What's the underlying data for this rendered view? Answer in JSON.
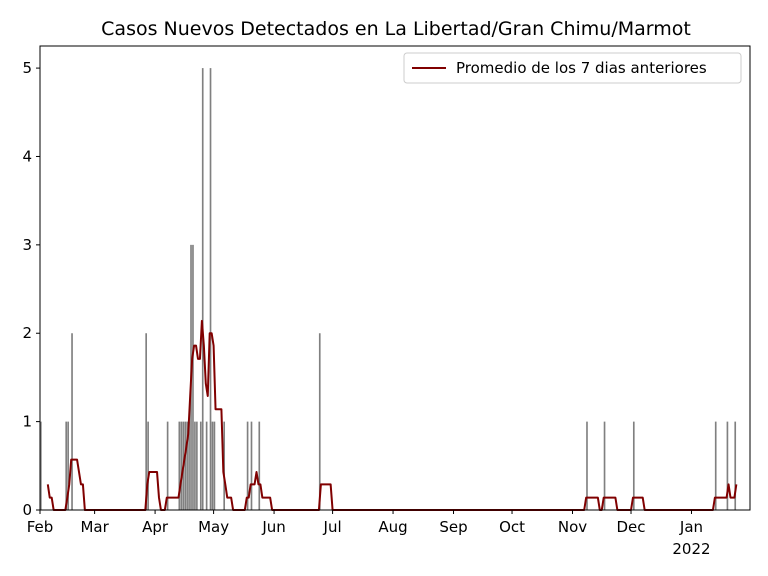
{
  "chart_data": {
    "type": "bar",
    "title": "Casos Nuevos Detectados en La Libertad/Gran Chimu/Marmot",
    "xlabel": "",
    "ylabel": "",
    "x_range": [
      "2021-02-01",
      "2022-01-31"
    ],
    "ylim": [
      0,
      5.25
    ],
    "y_ticks": [
      0,
      1,
      2,
      3,
      4,
      5
    ],
    "x_ticks": [
      {
        "date": "2021-02-01",
        "label": "Feb",
        "sublabel": ""
      },
      {
        "date": "2021-03-01",
        "label": "Mar",
        "sublabel": ""
      },
      {
        "date": "2021-04-01",
        "label": "Apr",
        "sublabel": ""
      },
      {
        "date": "2021-05-01",
        "label": "May",
        "sublabel": ""
      },
      {
        "date": "2021-06-01",
        "label": "Jun",
        "sublabel": ""
      },
      {
        "date": "2021-07-01",
        "label": "Jul",
        "sublabel": ""
      },
      {
        "date": "2021-08-01",
        "label": "Aug",
        "sublabel": ""
      },
      {
        "date": "2021-09-01",
        "label": "Sep",
        "sublabel": ""
      },
      {
        "date": "2021-10-01",
        "label": "Oct",
        "sublabel": ""
      },
      {
        "date": "2021-11-01",
        "label": "Nov",
        "sublabel": ""
      },
      {
        "date": "2021-12-01",
        "label": "Dec",
        "sublabel": ""
      },
      {
        "date": "2022-01-01",
        "label": "Jan",
        "sublabel": "2022"
      }
    ],
    "grid": false,
    "legend": {
      "position": "upper-right"
    },
    "bar_color": "#808080",
    "series": [
      {
        "kind": "bar",
        "x": [
          "2021-02-01",
          "2021-02-14",
          "2021-02-15",
          "2021-02-17",
          "2021-03-27",
          "2021-03-28",
          "2021-04-07",
          "2021-04-13",
          "2021-04-14",
          "2021-04-15",
          "2021-04-16",
          "2021-04-17",
          "2021-04-18",
          "2021-04-19",
          "2021-04-20",
          "2021-04-21",
          "2021-04-22",
          "2021-04-24",
          "2021-04-25",
          "2021-04-27",
          "2021-04-29",
          "2021-04-30",
          "2021-05-01",
          "2021-05-06",
          "2021-05-18",
          "2021-05-20",
          "2021-05-24",
          "2021-06-24",
          "2021-11-08",
          "2021-11-17",
          "2021-12-02",
          "2022-01-13",
          "2022-01-19",
          "2022-01-23"
        ],
        "values": [
          1,
          1,
          1,
          2,
          2,
          1,
          1,
          1,
          1,
          1,
          1,
          1,
          1,
          3,
          3,
          1,
          1,
          1,
          5,
          1,
          5,
          1,
          1,
          1,
          1,
          1,
          1,
          2,
          1,
          1,
          1,
          1,
          1,
          1
        ]
      },
      {
        "kind": "line",
        "name": "Promedio de los 7 dias anteriores",
        "color": "#800000",
        "x": [
          "2021-02-05",
          "2021-02-06",
          "2021-02-07",
          "2021-02-08",
          "2021-02-14",
          "2021-02-15",
          "2021-02-16",
          "2021-02-17",
          "2021-02-18",
          "2021-02-19",
          "2021-02-20",
          "2021-02-21",
          "2021-02-22",
          "2021-02-23",
          "2021-02-24",
          "2021-03-27",
          "2021-03-28",
          "2021-03-29",
          "2021-03-30",
          "2021-03-31",
          "2021-04-01",
          "2021-04-02",
          "2021-04-03",
          "2021-04-04",
          "2021-04-05",
          "2021-04-06",
          "2021-04-07",
          "2021-04-13",
          "2021-04-14",
          "2021-04-15",
          "2021-04-16",
          "2021-04-17",
          "2021-04-18",
          "2021-04-19",
          "2021-04-20",
          "2021-04-21",
          "2021-04-22",
          "2021-04-23",
          "2021-04-24",
          "2021-04-25",
          "2021-04-26",
          "2021-04-27",
          "2021-04-28",
          "2021-04-29",
          "2021-04-30",
          "2021-05-01",
          "2021-05-02",
          "2021-05-03",
          "2021-05-04",
          "2021-05-05",
          "2021-05-06",
          "2021-05-07",
          "2021-05-08",
          "2021-05-09",
          "2021-05-10",
          "2021-05-11",
          "2021-05-12",
          "2021-05-13",
          "2021-05-14",
          "2021-05-17",
          "2021-05-18",
          "2021-05-19",
          "2021-05-20",
          "2021-05-21",
          "2021-05-22",
          "2021-05-23",
          "2021-05-24",
          "2021-05-25",
          "2021-05-26",
          "2021-05-27",
          "2021-05-28",
          "2021-05-29",
          "2021-05-30",
          "2021-05-31",
          "2021-06-24",
          "2021-06-25",
          "2021-06-26",
          "2021-06-27",
          "2021-06-28",
          "2021-06-29",
          "2021-06-30",
          "2021-07-01",
          "2021-11-07",
          "2021-11-08",
          "2021-11-09",
          "2021-11-10",
          "2021-11-11",
          "2021-11-12",
          "2021-11-13",
          "2021-11-14",
          "2021-11-15",
          "2021-11-16",
          "2021-11-17",
          "2021-11-18",
          "2021-11-19",
          "2021-11-20",
          "2021-11-21",
          "2021-11-22",
          "2021-11-23",
          "2021-11-24",
          "2021-12-01",
          "2021-12-02",
          "2021-12-03",
          "2021-12-04",
          "2021-12-05",
          "2021-12-06",
          "2021-12-07",
          "2021-12-08",
          "2021-12-09",
          "2022-01-12",
          "2022-01-13",
          "2022-01-14",
          "2022-01-15",
          "2022-01-16",
          "2022-01-17",
          "2022-01-18",
          "2022-01-19",
          "2022-01-20",
          "2022-01-21",
          "2022-01-22",
          "2022-01-23",
          "2022-01-24"
        ],
        "values": [
          0.29,
          0.14,
          0.14,
          0,
          0,
          0.14,
          0.29,
          0.57,
          0.57,
          0.57,
          0.57,
          0.43,
          0.29,
          0.29,
          0,
          0,
          0.29,
          0.43,
          0.43,
          0.43,
          0.43,
          0.43,
          0.14,
          0,
          0,
          0,
          0.14,
          0.14,
          0.29,
          0.43,
          0.57,
          0.71,
          0.86,
          1.29,
          1.71,
          1.86,
          1.86,
          1.71,
          1.71,
          2.14,
          1.86,
          1.43,
          1.29,
          2.0,
          2.0,
          1.86,
          1.14,
          1.14,
          1.14,
          1.14,
          0.43,
          0.29,
          0.14,
          0.14,
          0.14,
          0,
          0,
          0,
          0,
          0,
          0.14,
          0.14,
          0.29,
          0.29,
          0.29,
          0.43,
          0.29,
          0.29,
          0.14,
          0.14,
          0.14,
          0.14,
          0.14,
          0,
          0,
          0.29,
          0.29,
          0.29,
          0.29,
          0.29,
          0.29,
          0,
          0,
          0.14,
          0.14,
          0.14,
          0.14,
          0.14,
          0.14,
          0.14,
          0,
          0,
          0.14,
          0.14,
          0.14,
          0.14,
          0.14,
          0.14,
          0.14,
          0,
          0,
          0.14,
          0.14,
          0.14,
          0.14,
          0.14,
          0.14,
          0,
          0,
          0,
          0.14,
          0.14,
          0.14,
          0.14,
          0.14,
          0.14,
          0.14,
          0.29,
          0.14,
          0.14,
          0.14,
          0.29
        ]
      }
    ]
  }
}
